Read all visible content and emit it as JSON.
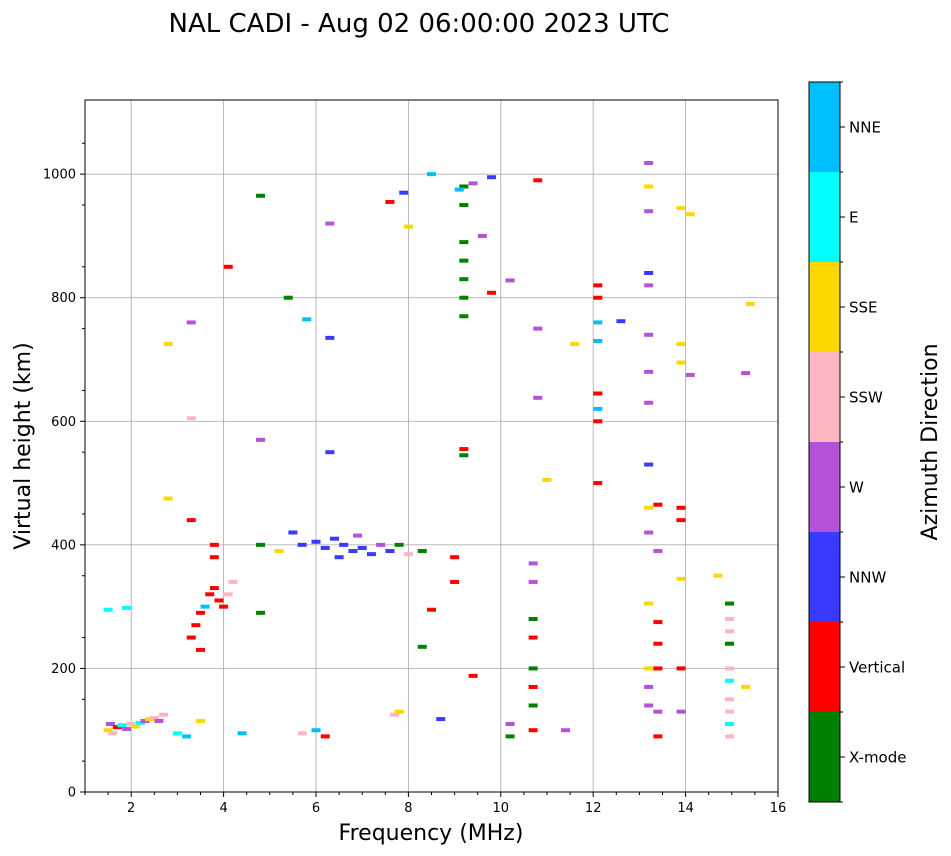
{
  "chart_data": {
    "type": "scatter",
    "title": "NAL CADI - Aug 02 06:00:00 2023 UTC",
    "xlabel": "Frequency (MHz)",
    "ylabel": "Virtual height (km)",
    "xlim": [
      1,
      16
    ],
    "ylim": [
      0,
      1120
    ],
    "xticks": [
      2,
      4,
      6,
      8,
      10,
      12,
      14,
      16
    ],
    "xtick_labels": [
      "2",
      "4",
      "6",
      "8",
      "10",
      "12",
      "14",
      "16"
    ],
    "yticks": [
      0,
      200,
      400,
      600,
      800,
      1000
    ],
    "ytick_labels": [
      "0",
      "200",
      "400",
      "600",
      "800",
      "1000"
    ],
    "grid": true,
    "colorbar": {
      "title": "Azimuth Direction",
      "categories": [
        {
          "name": "X-mode",
          "color": "#008000"
        },
        {
          "name": "Vertical",
          "color": "#ff0000"
        },
        {
          "name": "NNW",
          "color": "#3a3aff"
        },
        {
          "name": "W",
          "color": "#b452d8"
        },
        {
          "name": "SSW",
          "color": "#ffb6c1"
        },
        {
          "name": "SSE",
          "color": "#ffd700"
        },
        {
          "name": "E",
          "color": "#00ffff"
        },
        {
          "name": "NNE",
          "color": "#00bfff"
        }
      ]
    },
    "points": [
      {
        "f": 1.5,
        "h": 100,
        "c": "SSE"
      },
      {
        "f": 1.55,
        "h": 110,
        "c": "W"
      },
      {
        "f": 1.6,
        "h": 95,
        "c": "SSW"
      },
      {
        "f": 1.7,
        "h": 105,
        "c": "Vertical"
      },
      {
        "f": 1.8,
        "h": 108,
        "c": "E"
      },
      {
        "f": 1.9,
        "h": 102,
        "c": "W"
      },
      {
        "f": 2.0,
        "h": 110,
        "c": "SSW"
      },
      {
        "f": 2.1,
        "h": 106,
        "c": "SSE"
      },
      {
        "f": 2.2,
        "h": 112,
        "c": "E"
      },
      {
        "f": 2.3,
        "h": 115,
        "c": "W"
      },
      {
        "f": 2.4,
        "h": 118,
        "c": "SSE"
      },
      {
        "f": 2.5,
        "h": 120,
        "c": "SSW"
      },
      {
        "f": 2.6,
        "h": 115,
        "c": "W"
      },
      {
        "f": 2.7,
        "h": 125,
        "c": "SSW"
      },
      {
        "f": 1.5,
        "h": 295,
        "c": "E"
      },
      {
        "f": 1.9,
        "h": 298,
        "c": "E"
      },
      {
        "f": 3.0,
        "h": 95,
        "c": "E"
      },
      {
        "f": 3.2,
        "h": 90,
        "c": "NNE"
      },
      {
        "f": 3.5,
        "h": 115,
        "c": "SSE"
      },
      {
        "f": 3.3,
        "h": 250,
        "c": "Vertical"
      },
      {
        "f": 3.4,
        "h": 270,
        "c": "Vertical"
      },
      {
        "f": 3.5,
        "h": 290,
        "c": "Vertical"
      },
      {
        "f": 3.6,
        "h": 300,
        "c": "NNE"
      },
      {
        "f": 3.7,
        "h": 320,
        "c": "Vertical"
      },
      {
        "f": 3.8,
        "h": 330,
        "c": "Vertical"
      },
      {
        "f": 3.9,
        "h": 310,
        "c": "Vertical"
      },
      {
        "f": 4.0,
        "h": 300,
        "c": "Vertical"
      },
      {
        "f": 4.1,
        "h": 320,
        "c": "SSW"
      },
      {
        "f": 4.2,
        "h": 340,
        "c": "SSW"
      },
      {
        "f": 3.8,
        "h": 380,
        "c": "Vertical"
      },
      {
        "f": 3.8,
        "h": 400,
        "c": "Vertical"
      },
      {
        "f": 3.5,
        "h": 230,
        "c": "Vertical"
      },
      {
        "f": 3.3,
        "h": 440,
        "c": "Vertical"
      },
      {
        "f": 4.4,
        "h": 95,
        "c": "NNE"
      },
      {
        "f": 4.8,
        "h": 290,
        "c": "X-mode"
      },
      {
        "f": 4.8,
        "h": 400,
        "c": "X-mode"
      },
      {
        "f": 5.2,
        "h": 390,
        "c": "SSE"
      },
      {
        "f": 5.5,
        "h": 420,
        "c": "NNW"
      },
      {
        "f": 5.7,
        "h": 400,
        "c": "NNW"
      },
      {
        "f": 6.0,
        "h": 405,
        "c": "NNW"
      },
      {
        "f": 6.2,
        "h": 395,
        "c": "NNW"
      },
      {
        "f": 6.4,
        "h": 410,
        "c": "NNW"
      },
      {
        "f": 6.5,
        "h": 380,
        "c": "NNW"
      },
      {
        "f": 6.6,
        "h": 400,
        "c": "NNW"
      },
      {
        "f": 6.8,
        "h": 390,
        "c": "NNW"
      },
      {
        "f": 6.9,
        "h": 415,
        "c": "W"
      },
      {
        "f": 7.0,
        "h": 395,
        "c": "NNW"
      },
      {
        "f": 7.2,
        "h": 385,
        "c": "NNW"
      },
      {
        "f": 7.4,
        "h": 400,
        "c": "W"
      },
      {
        "f": 7.6,
        "h": 390,
        "c": "NNW"
      },
      {
        "f": 7.8,
        "h": 400,
        "c": "X-mode"
      },
      {
        "f": 8.0,
        "h": 385,
        "c": "SSW"
      },
      {
        "f": 8.3,
        "h": 390,
        "c": "X-mode"
      },
      {
        "f": 6.2,
        "h": 90,
        "c": "Vertical"
      },
      {
        "f": 6.0,
        "h": 100,
        "c": "NNE"
      },
      {
        "f": 5.7,
        "h": 95,
        "c": "SSW"
      },
      {
        "f": 7.7,
        "h": 125,
        "c": "SSW"
      },
      {
        "f": 7.8,
        "h": 130,
        "c": "SSE"
      },
      {
        "f": 8.3,
        "h": 235,
        "c": "X-mode"
      },
      {
        "f": 8.5,
        "h": 295,
        "c": "Vertical"
      },
      {
        "f": 8.7,
        "h": 118,
        "c": "NNW"
      },
      {
        "f": 9.0,
        "h": 340,
        "c": "Vertical"
      },
      {
        "f": 9.0,
        "h": 380,
        "c": "Vertical"
      },
      {
        "f": 9.4,
        "h": 188,
        "c": "Vertical"
      },
      {
        "f": 9.2,
        "h": 545,
        "c": "X-mode"
      },
      {
        "f": 9.2,
        "h": 555,
        "c": "Vertical"
      },
      {
        "f": 9.2,
        "h": 770,
        "c": "X-mode"
      },
      {
        "f": 9.2,
        "h": 800,
        "c": "X-mode"
      },
      {
        "f": 9.2,
        "h": 830,
        "c": "X-mode"
      },
      {
        "f": 9.2,
        "h": 860,
        "c": "X-mode"
      },
      {
        "f": 9.2,
        "h": 890,
        "c": "X-mode"
      },
      {
        "f": 9.2,
        "h": 950,
        "c": "X-mode"
      },
      {
        "f": 9.2,
        "h": 980,
        "c": "X-mode"
      },
      {
        "f": 9.4,
        "h": 985,
        "c": "W"
      },
      {
        "f": 9.6,
        "h": 900,
        "c": "W"
      },
      {
        "f": 9.8,
        "h": 995,
        "c": "NNW"
      },
      {
        "f": 9.1,
        "h": 975,
        "c": "NNE"
      },
      {
        "f": 8.5,
        "h": 1000,
        "c": "NNE"
      },
      {
        "f": 10.2,
        "h": 90,
        "c": "X-mode"
      },
      {
        "f": 10.2,
        "h": 110,
        "c": "W"
      },
      {
        "f": 10.7,
        "h": 100,
        "c": "Vertical"
      },
      {
        "f": 10.7,
        "h": 140,
        "c": "X-mode"
      },
      {
        "f": 10.7,
        "h": 170,
        "c": "Vertical"
      },
      {
        "f": 10.7,
        "h": 200,
        "c": "X-mode"
      },
      {
        "f": 10.7,
        "h": 250,
        "c": "Vertical"
      },
      {
        "f": 10.7,
        "h": 280,
        "c": "X-mode"
      },
      {
        "f": 10.7,
        "h": 340,
        "c": "W"
      },
      {
        "f": 10.7,
        "h": 370,
        "c": "W"
      },
      {
        "f": 11.4,
        "h": 100,
        "c": "W"
      },
      {
        "f": 11.6,
        "h": 725,
        "c": "SSE"
      },
      {
        "f": 12.1,
        "h": 500,
        "c": "Vertical"
      },
      {
        "f": 12.1,
        "h": 600,
        "c": "Vertical"
      },
      {
        "f": 12.1,
        "h": 620,
        "c": "NNE"
      },
      {
        "f": 12.1,
        "h": 645,
        "c": "Vertical"
      },
      {
        "f": 12.1,
        "h": 730,
        "c": "NNE"
      },
      {
        "f": 12.1,
        "h": 760,
        "c": "NNE"
      },
      {
        "f": 12.1,
        "h": 800,
        "c": "Vertical"
      },
      {
        "f": 12.1,
        "h": 820,
        "c": "Vertical"
      },
      {
        "f": 12.6,
        "h": 762,
        "c": "NNW"
      },
      {
        "f": 13.2,
        "h": 140,
        "c": "W"
      },
      {
        "f": 13.2,
        "h": 170,
        "c": "W"
      },
      {
        "f": 13.2,
        "h": 200,
        "c": "SSE"
      },
      {
        "f": 13.2,
        "h": 305,
        "c": "SSE"
      },
      {
        "f": 13.2,
        "h": 420,
        "c": "W"
      },
      {
        "f": 13.2,
        "h": 460,
        "c": "SSE"
      },
      {
        "f": 13.2,
        "h": 530,
        "c": "NNW"
      },
      {
        "f": 13.2,
        "h": 630,
        "c": "W"
      },
      {
        "f": 13.2,
        "h": 680,
        "c": "W"
      },
      {
        "f": 13.2,
        "h": 740,
        "c": "W"
      },
      {
        "f": 13.2,
        "h": 820,
        "c": "W"
      },
      {
        "f": 13.2,
        "h": 840,
        "c": "NNW"
      },
      {
        "f": 13.2,
        "h": 940,
        "c": "W"
      },
      {
        "f": 13.2,
        "h": 980,
        "c": "SSE"
      },
      {
        "f": 13.2,
        "h": 1018,
        "c": "W"
      },
      {
        "f": 13.4,
        "h": 90,
        "c": "Vertical"
      },
      {
        "f": 13.4,
        "h": 130,
        "c": "W"
      },
      {
        "f": 13.4,
        "h": 200,
        "c": "Vertical"
      },
      {
        "f": 13.4,
        "h": 240,
        "c": "Vertical"
      },
      {
        "f": 13.4,
        "h": 275,
        "c": "Vertical"
      },
      {
        "f": 13.4,
        "h": 390,
        "c": "W"
      },
      {
        "f": 13.4,
        "h": 465,
        "c": "Vertical"
      },
      {
        "f": 13.9,
        "h": 130,
        "c": "W"
      },
      {
        "f": 13.9,
        "h": 200,
        "c": "Vertical"
      },
      {
        "f": 13.9,
        "h": 345,
        "c": "SSE"
      },
      {
        "f": 13.9,
        "h": 440,
        "c": "Vertical"
      },
      {
        "f": 13.9,
        "h": 460,
        "c": "Vertical"
      },
      {
        "f": 13.9,
        "h": 695,
        "c": "SSE"
      },
      {
        "f": 13.9,
        "h": 725,
        "c": "SSE"
      },
      {
        "f": 13.9,
        "h": 945,
        "c": "SSE"
      },
      {
        "f": 14.1,
        "h": 935,
        "c": "SSE"
      },
      {
        "f": 14.1,
        "h": 675,
        "c": "W"
      },
      {
        "f": 14.7,
        "h": 350,
        "c": "SSE"
      },
      {
        "f": 14.95,
        "h": 90,
        "c": "SSW"
      },
      {
        "f": 14.95,
        "h": 110,
        "c": "E"
      },
      {
        "f": 14.95,
        "h": 130,
        "c": "SSW"
      },
      {
        "f": 14.95,
        "h": 150,
        "c": "SSW"
      },
      {
        "f": 14.95,
        "h": 180,
        "c": "E"
      },
      {
        "f": 14.95,
        "h": 200,
        "c": "SSW"
      },
      {
        "f": 14.95,
        "h": 240,
        "c": "X-mode"
      },
      {
        "f": 14.95,
        "h": 260,
        "c": "SSW"
      },
      {
        "f": 14.95,
        "h": 280,
        "c": "SSW"
      },
      {
        "f": 14.95,
        "h": 305,
        "c": "X-mode"
      },
      {
        "f": 15.3,
        "h": 170,
        "c": "SSE"
      },
      {
        "f": 15.3,
        "h": 678,
        "c": "W"
      },
      {
        "f": 15.4,
        "h": 790,
        "c": "SSE"
      },
      {
        "f": 4.1,
        "h": 850,
        "c": "Vertical"
      },
      {
        "f": 4.8,
        "h": 965,
        "c": "X-mode"
      },
      {
        "f": 5.4,
        "h": 800,
        "c": "X-mode"
      },
      {
        "f": 6.3,
        "h": 920,
        "c": "W"
      },
      {
        "f": 6.3,
        "h": 735,
        "c": "NNW"
      },
      {
        "f": 7.6,
        "h": 955,
        "c": "Vertical"
      },
      {
        "f": 7.9,
        "h": 970,
        "c": "NNW"
      },
      {
        "f": 8.0,
        "h": 915,
        "c": "SSE"
      },
      {
        "f": 3.3,
        "h": 605,
        "c": "SSW"
      },
      {
        "f": 3.3,
        "h": 760,
        "c": "W"
      },
      {
        "f": 4.8,
        "h": 570,
        "c": "W"
      },
      {
        "f": 6.3,
        "h": 550,
        "c": "NNW"
      },
      {
        "f": 10.8,
        "h": 638,
        "c": "W"
      },
      {
        "f": 10.8,
        "h": 750,
        "c": "W"
      },
      {
        "f": 11.0,
        "h": 505,
        "c": "SSE"
      },
      {
        "f": 10.2,
        "h": 828,
        "c": "W"
      },
      {
        "f": 10.8,
        "h": 990,
        "c": "Vertical"
      },
      {
        "f": 9.8,
        "h": 808,
        "c": "Vertical"
      },
      {
        "f": 5.8,
        "h": 765,
        "c": "NNE"
      },
      {
        "f": 2.8,
        "h": 725,
        "c": "SSE"
      },
      {
        "f": 2.8,
        "h": 475,
        "c": "SSE"
      }
    ]
  }
}
